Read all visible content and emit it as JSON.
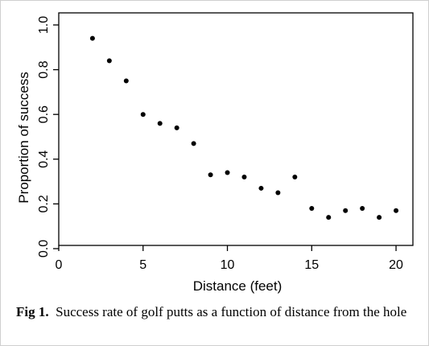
{
  "chart_data": {
    "type": "scatter",
    "title": "",
    "xlabel": "Distance (feet)",
    "ylabel": "Proportion of success",
    "xlim": [
      0,
      21
    ],
    "ylim": [
      0,
      1.0
    ],
    "x_ticks": [
      0,
      5,
      10,
      15,
      20
    ],
    "x_tick_labels": [
      "0",
      "5",
      "10",
      "15",
      "20"
    ],
    "y_ticks": [
      0,
      0.2,
      0.4,
      0.6,
      0.8,
      1.0
    ],
    "y_tick_labels": [
      "0.0",
      "0.2",
      "0.4",
      "0.6",
      "0.8",
      "1.0"
    ],
    "grid": false,
    "legend": "none",
    "marker_color": "#000000",
    "series": [
      {
        "x": [
          2,
          3,
          4,
          5,
          6,
          7,
          8,
          9,
          10,
          11,
          12,
          13,
          14,
          15,
          16,
          17,
          18,
          19,
          20
        ],
        "y": [
          0.94,
          0.84,
          0.75,
          0.6,
          0.56,
          0.54,
          0.47,
          0.33,
          0.34,
          0.32,
          0.27,
          0.25,
          0.32,
          0.18,
          0.14,
          0.17,
          0.18,
          0.14,
          0.17
        ]
      }
    ]
  },
  "caption": {
    "label": "Fig 1.",
    "text": "Success rate of golf putts as a function of distance from the hole"
  }
}
